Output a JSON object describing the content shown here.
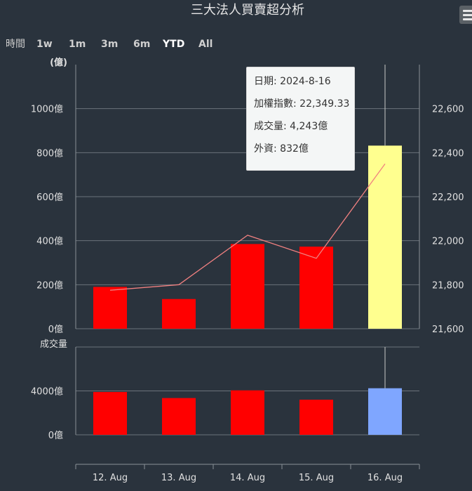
{
  "title": "三大法人買賣超分析",
  "range_selector": {
    "label": "時間",
    "buttons": [
      "1w",
      "1m",
      "3m",
      "6m",
      "YTD",
      "All"
    ],
    "selected": "YTD"
  },
  "tooltip": {
    "date_label": "日期",
    "date": "2024-8-16",
    "index_label": "加權指數",
    "index": "22,349.33",
    "volume_label": "成交量",
    "volume": "4,243億",
    "foreign_label": "外資",
    "foreign": "832億"
  },
  "chart_data": {
    "type": "bar",
    "categories": [
      "12. Aug",
      "13. Aug",
      "14. Aug",
      "15. Aug",
      "16. Aug"
    ],
    "upper": {
      "left_axis_title": "(億)",
      "left_ticks": [
        "0億",
        "200億",
        "400億",
        "600億",
        "800億",
        "1000億"
      ],
      "ylim": [
        0,
        1200
      ],
      "right_ticks": [
        "21,600",
        "21,800",
        "22,000",
        "22,200",
        "22,400",
        "22,600"
      ],
      "right_ylim": [
        21600,
        22800
      ],
      "bars": [
        190,
        135,
        385,
        373,
        832
      ],
      "line": [
        21775,
        21800,
        22025,
        21920,
        22349.33
      ],
      "bar_colors": [
        "#ff0000",
        "#ff0000",
        "#ff0000",
        "#ff0000",
        "#ffff8f"
      ],
      "line_color": "#f08080"
    },
    "lower": {
      "axis_title": "成交量",
      "ticks": [
        "0億",
        "4000億"
      ],
      "ylim": [
        0,
        8000
      ],
      "bars": [
        3900,
        3350,
        4050,
        3200,
        4243
      ],
      "bar_colors": [
        "#ff0000",
        "#ff0000",
        "#ff0000",
        "#ff0000",
        "#7fa6ff"
      ]
    },
    "hover_index": 4,
    "grid": true
  }
}
